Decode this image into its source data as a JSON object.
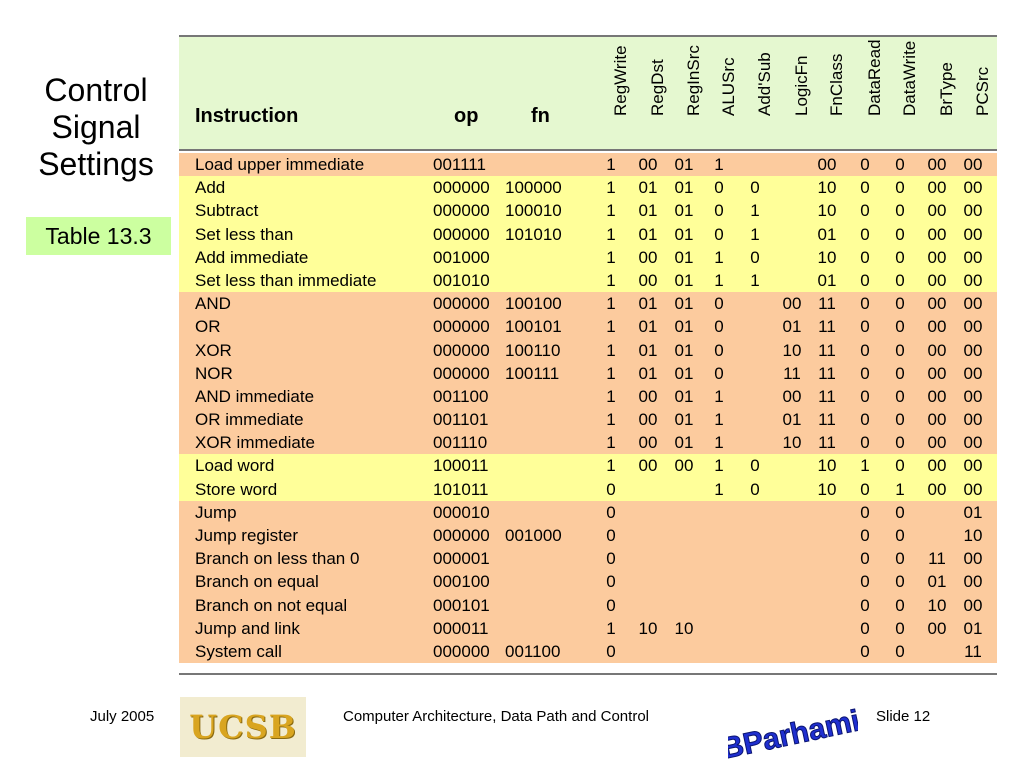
{
  "slide": {
    "title_lines": [
      "Control",
      "Signal",
      "Settings"
    ],
    "table_tag": "Table 13.3"
  },
  "table": {
    "headers": {
      "instruction": "Instruction",
      "op": "op",
      "fn": "fn",
      "signals": [
        "RegWrite",
        "RegDst",
        "RegInSrc",
        "ALUSrc",
        "Add'Sub",
        "LogicFn",
        "FnClass",
        "DataRead",
        "DataWrite",
        "BrType",
        "PCSrc"
      ]
    },
    "rows": [
      {
        "name": "Load upper immediate",
        "op": "001111",
        "fn": "",
        "color": "orange",
        "sig": [
          "1",
          "00",
          "01",
          "1",
          "",
          "",
          "00",
          "0",
          "0",
          "00",
          "00"
        ]
      },
      {
        "name": "Add",
        "op": "000000",
        "fn": "100000",
        "color": "yellow",
        "sig": [
          "1",
          "01",
          "01",
          "0",
          "0",
          "",
          "10",
          "0",
          "0",
          "00",
          "00"
        ]
      },
      {
        "name": "Subtract",
        "op": "000000",
        "fn": "100010",
        "color": "yellow",
        "sig": [
          "1",
          "01",
          "01",
          "0",
          "1",
          "",
          "10",
          "0",
          "0",
          "00",
          "00"
        ]
      },
      {
        "name": "Set less than",
        "op": "000000",
        "fn": "101010",
        "color": "yellow",
        "sig": [
          "1",
          "01",
          "01",
          "0",
          "1",
          "",
          "01",
          "0",
          "0",
          "00",
          "00"
        ]
      },
      {
        "name": "Add immediate",
        "op": "001000",
        "fn": "",
        "color": "yellow",
        "sig": [
          "1",
          "00",
          "01",
          "1",
          "0",
          "",
          "10",
          "0",
          "0",
          "00",
          "00"
        ]
      },
      {
        "name": "Set less than immediate",
        "op": "001010",
        "fn": "",
        "color": "yellow",
        "sig": [
          "1",
          "00",
          "01",
          "1",
          "1",
          "",
          "01",
          "0",
          "0",
          "00",
          "00"
        ]
      },
      {
        "name": "AND",
        "op": "000000",
        "fn": "100100",
        "color": "orange",
        "sig": [
          "1",
          "01",
          "01",
          "0",
          "",
          "00",
          "11",
          "0",
          "0",
          "00",
          "00"
        ]
      },
      {
        "name": "OR",
        "op": "000000",
        "fn": "100101",
        "color": "orange",
        "sig": [
          "1",
          "01",
          "01",
          "0",
          "",
          "01",
          "11",
          "0",
          "0",
          "00",
          "00"
        ]
      },
      {
        "name": "XOR",
        "op": "000000",
        "fn": "100110",
        "color": "orange",
        "sig": [
          "1",
          "01",
          "01",
          "0",
          "",
          "10",
          "11",
          "0",
          "0",
          "00",
          "00"
        ]
      },
      {
        "name": "NOR",
        "op": "000000",
        "fn": "100111",
        "color": "orange",
        "sig": [
          "1",
          "01",
          "01",
          "0",
          "",
          "11",
          "11",
          "0",
          "0",
          "00",
          "00"
        ]
      },
      {
        "name": "AND immediate",
        "op": "001100",
        "fn": "",
        "color": "orange",
        "sig": [
          "1",
          "00",
          "01",
          "1",
          "",
          "00",
          "11",
          "0",
          "0",
          "00",
          "00"
        ]
      },
      {
        "name": "OR immediate",
        "op": "001101",
        "fn": "",
        "color": "orange",
        "sig": [
          "1",
          "00",
          "01",
          "1",
          "",
          "01",
          "11",
          "0",
          "0",
          "00",
          "00"
        ]
      },
      {
        "name": "XOR immediate",
        "op": "001110",
        "fn": "",
        "color": "orange",
        "sig": [
          "1",
          "00",
          "01",
          "1",
          "",
          "10",
          "11",
          "0",
          "0",
          "00",
          "00"
        ]
      },
      {
        "name": "Load word",
        "op": "100011",
        "fn": "",
        "color": "yellow",
        "sig": [
          "1",
          "00",
          "00",
          "1",
          "0",
          "",
          "10",
          "1",
          "0",
          "00",
          "00"
        ]
      },
      {
        "name": "Store word",
        "op": "101011",
        "fn": "",
        "color": "yellow",
        "sig": [
          "0",
          "",
          "",
          "1",
          "0",
          "",
          "10",
          "0",
          "1",
          "00",
          "00"
        ]
      },
      {
        "name": "Jump",
        "op": "000010",
        "fn": "",
        "color": "orange",
        "sig": [
          "0",
          "",
          "",
          "",
          "",
          "",
          "",
          "0",
          "0",
          "",
          "01"
        ]
      },
      {
        "name": "Jump register",
        "op": "000000",
        "fn": "001000",
        "color": "orange",
        "sig": [
          "0",
          "",
          "",
          "",
          "",
          "",
          "",
          "0",
          "0",
          "",
          "10"
        ]
      },
      {
        "name": "Branch on less than 0",
        "op": "000001",
        "fn": "",
        "color": "orange",
        "sig": [
          "0",
          "",
          "",
          "",
          "",
          "",
          "",
          "0",
          "0",
          "11",
          "00"
        ]
      },
      {
        "name": "Branch on equal",
        "op": "000100",
        "fn": "",
        "color": "orange",
        "sig": [
          "0",
          "",
          "",
          "",
          "",
          "",
          "",
          "0",
          "0",
          "01",
          "00"
        ]
      },
      {
        "name": "Branch on not equal",
        "op": "000101",
        "fn": "",
        "color": "orange",
        "sig": [
          "0",
          "",
          "",
          "",
          "",
          "",
          "",
          "0",
          "0",
          "10",
          "00"
        ]
      },
      {
        "name": "Jump and link",
        "op": "000011",
        "fn": "",
        "color": "orange",
        "sig": [
          "1",
          "10",
          "10",
          "",
          "",
          "",
          "",
          "0",
          "0",
          "00",
          "01"
        ]
      },
      {
        "name": "System call",
        "op": "000000",
        "fn": "001100",
        "color": "orange",
        "sig": [
          "0",
          "",
          "",
          "",
          "",
          "",
          "",
          "0",
          "0",
          "",
          "11"
        ]
      }
    ]
  },
  "footer": {
    "date": "July 2005",
    "logo_text": "UCSB",
    "course": "Computer Architecture, Data Path and Control",
    "slide": "Slide 12",
    "signature": "BParhami"
  },
  "colors": {
    "orange_row": "#fccb9e",
    "yellow_row": "#ffff99",
    "header_bg": "#e5f8d0",
    "tag_bg": "#ccffa0",
    "signature_blue": "#1f2fd0"
  }
}
